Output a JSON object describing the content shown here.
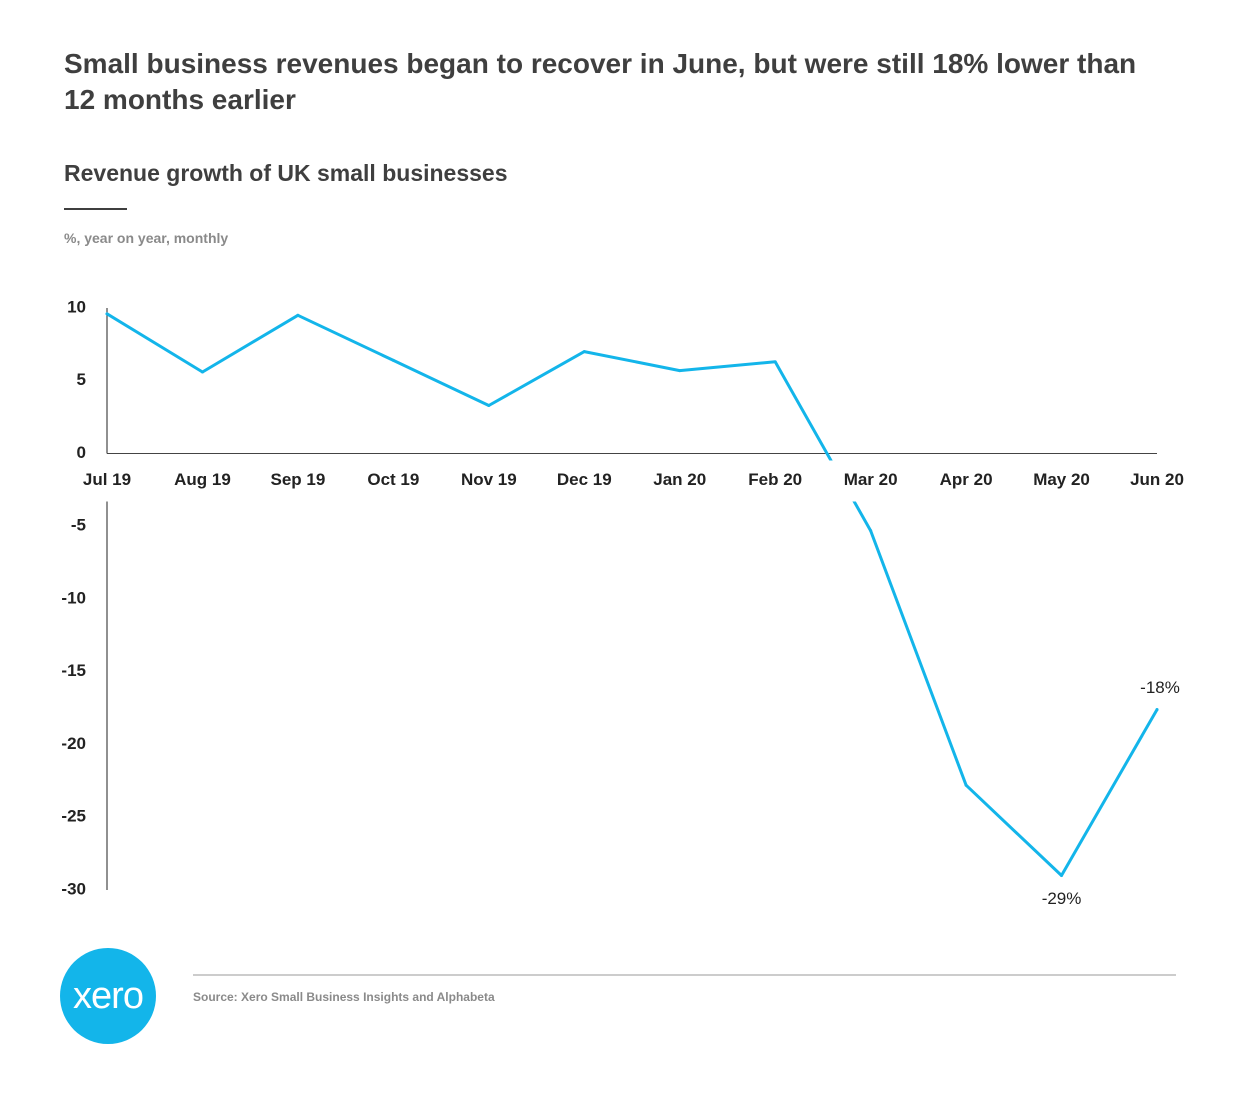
{
  "headline": "Small business revenues began to recover in June, but were still 18% lower than 12 months earlier",
  "chart_title": "Revenue growth of UK small businesses",
  "units": "%, year on year, monthly",
  "source": "Source: Xero Small Business Insights and Alphabeta",
  "logo_text": "xero",
  "colors": {
    "line": "#13b5ea",
    "logo": "#13b5ea",
    "text": "#3f3f3f",
    "muted": "#8a8a8a"
  },
  "chart_data": {
    "type": "line",
    "title": "Revenue growth of UK small businesses",
    "ylabel": "%, year on year, monthly",
    "categories": [
      "Jul 19",
      "Aug 19",
      "Sep 19",
      "Oct 19",
      "Nov 19",
      "Dec 19",
      "Jan 20",
      "Feb 20",
      "Mar 20",
      "Apr 20",
      "May 20",
      "Jun 20"
    ],
    "series": [
      {
        "values": [
          9.6,
          5.6,
          9.5,
          6.4,
          3.3,
          7.0,
          5.7,
          6.3,
          -5.3,
          -22.8,
          -29.0,
          -17.6
        ]
      }
    ],
    "ylim": [
      -30,
      10
    ],
    "yticks": [
      10,
      5,
      0,
      -5,
      -10,
      -15,
      -20,
      -25,
      -30
    ],
    "annotations": [
      {
        "category": "May 20",
        "label": "-29%"
      },
      {
        "category": "Jun 20",
        "label": "-18%"
      }
    ],
    "grid": false,
    "legend": "none"
  }
}
